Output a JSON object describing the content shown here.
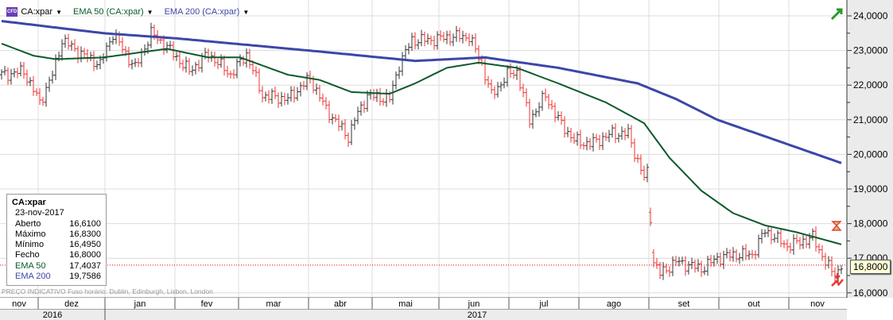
{
  "legend": {
    "symbol": "CA:xpar",
    "ema50": "EMA 50 (CA:xpar)",
    "ema200": "EMA 200 (CA:xpar)",
    "cfd_badge": "CFD"
  },
  "info": {
    "title": "CA:xpar",
    "date": "23-nov-2017",
    "rows": [
      {
        "label": "Aberto",
        "value": "16,6100"
      },
      {
        "label": "Máximo",
        "value": "16,8300"
      },
      {
        "label": "Mínimo",
        "value": "16,4950"
      },
      {
        "label": "Fecho",
        "value": "16,8000"
      },
      {
        "label": "EMA 50",
        "value": "17,4037"
      },
      {
        "label": "EMA 200",
        "value": "19,7586"
      }
    ]
  },
  "footer": "PREÇO INDICATIVO    Fuso horário: Dublin, Edinburgh, Lisbon, London",
  "last_price_label": "16,8000",
  "colors": {
    "ema50": "#0b5a2a",
    "ema200": "#3b47a8",
    "up": "#333333",
    "down": "#ee3333",
    "last_line": "#e00000"
  },
  "chart_data": {
    "type": "ohlc",
    "ylim": [
      15.9,
      24.1
    ],
    "yticks": [
      "16,0000",
      "17,0000",
      "18,0000",
      "19,0000",
      "20,0000",
      "21,0000",
      "22,0000",
      "23,0000",
      "24,0000"
    ],
    "ytick_values": [
      16,
      17,
      18,
      19,
      20,
      21,
      22,
      23,
      24
    ],
    "last_price": 16.8,
    "days": 265,
    "months": [
      {
        "label": "nov",
        "start": 0,
        "end": 12
      },
      {
        "label": "dez",
        "start": 12,
        "end": 33
      },
      {
        "label": "jan",
        "start": 33,
        "end": 55
      },
      {
        "label": "fev",
        "start": 55,
        "end": 75
      },
      {
        "label": "mar",
        "start": 75,
        "end": 97
      },
      {
        "label": "abr",
        "start": 97,
        "end": 117
      },
      {
        "label": "mai",
        "start": 117,
        "end": 138
      },
      {
        "label": "jun",
        "start": 138,
        "end": 160
      },
      {
        "label": "jul",
        "start": 160,
        "end": 182
      },
      {
        "label": "ago",
        "start": 182,
        "end": 204
      },
      {
        "label": "set",
        "start": 204,
        "end": 226
      },
      {
        "label": "out",
        "start": 226,
        "end": 248
      },
      {
        "label": "nov",
        "start": 248,
        "end": 266
      }
    ],
    "years": [
      {
        "label": "2016",
        "start": 0,
        "end": 33
      },
      {
        "label": "2017",
        "start": 33,
        "end": 266
      }
    ],
    "close_keypoints": [
      [
        1,
        22.3
      ],
      [
        7,
        22.4
      ],
      [
        12,
        21.5
      ],
      [
        16,
        22.3
      ],
      [
        19,
        23.3
      ],
      [
        25,
        22.9
      ],
      [
        31,
        22.6
      ],
      [
        35,
        23.5
      ],
      [
        39,
        22.9
      ],
      [
        42,
        22.5
      ],
      [
        47,
        23.5
      ],
      [
        52,
        23.1
      ],
      [
        59,
        22.4
      ],
      [
        65,
        22.9
      ],
      [
        72,
        22.3
      ],
      [
        77,
        22.9
      ],
      [
        82,
        21.7
      ],
      [
        90,
        21.6
      ],
      [
        97,
        22.2
      ],
      [
        102,
        21.3
      ],
      [
        109,
        20.5
      ],
      [
        111,
        21.0
      ],
      [
        115,
        21.7
      ],
      [
        122,
        21.6
      ],
      [
        125,
        22.6
      ],
      [
        129,
        23.3
      ],
      [
        135,
        23.3
      ],
      [
        141,
        23.4
      ],
      [
        147,
        23.4
      ],
      [
        151,
        22.6
      ],
      [
        154,
        21.7
      ],
      [
        159,
        22.3
      ],
      [
        162,
        22.4
      ],
      [
        166,
        21.0
      ],
      [
        171,
        21.7
      ],
      [
        175,
        21.0
      ],
      [
        180,
        20.4
      ],
      [
        185,
        20.3
      ],
      [
        192,
        20.6
      ],
      [
        197,
        20.6
      ],
      [
        200,
        19.8
      ],
      [
        202,
        19.3
      ],
      [
        203,
        19.5
      ],
      [
        205,
        16.9
      ],
      [
        207,
        16.55
      ],
      [
        212,
        16.9
      ],
      [
        220,
        16.7
      ],
      [
        225,
        17.0
      ],
      [
        230,
        17.1
      ],
      [
        236,
        17.1
      ],
      [
        240,
        17.8
      ],
      [
        247,
        17.35
      ],
      [
        255,
        17.6
      ],
      [
        259,
        16.9
      ],
      [
        262,
        16.45
      ],
      [
        264,
        16.8
      ]
    ],
    "ema50_keypoints": [
      [
        0,
        23.2
      ],
      [
        10,
        22.85
      ],
      [
        17,
        22.75
      ],
      [
        32,
        22.8
      ],
      [
        52,
        23.05
      ],
      [
        65,
        22.8
      ],
      [
        75,
        22.8
      ],
      [
        90,
        22.3
      ],
      [
        100,
        22.15
      ],
      [
        110,
        21.8
      ],
      [
        122,
        21.75
      ],
      [
        130,
        22.05
      ],
      [
        140,
        22.5
      ],
      [
        150,
        22.65
      ],
      [
        162,
        22.5
      ],
      [
        175,
        22.05
      ],
      [
        190,
        21.5
      ],
      [
        202,
        20.9
      ],
      [
        210,
        19.9
      ],
      [
        220,
        18.95
      ],
      [
        230,
        18.3
      ],
      [
        240,
        17.95
      ],
      [
        250,
        17.75
      ],
      [
        264,
        17.4
      ]
    ],
    "ema200_keypoints": [
      [
        0,
        23.85
      ],
      [
        32,
        23.5
      ],
      [
        55,
        23.35
      ],
      [
        100,
        22.97
      ],
      [
        130,
        22.7
      ],
      [
        152,
        22.8
      ],
      [
        175,
        22.5
      ],
      [
        200,
        22.05
      ],
      [
        212,
        21.6
      ],
      [
        225,
        21.0
      ],
      [
        250,
        20.2
      ],
      [
        264,
        19.75
      ]
    ]
  }
}
